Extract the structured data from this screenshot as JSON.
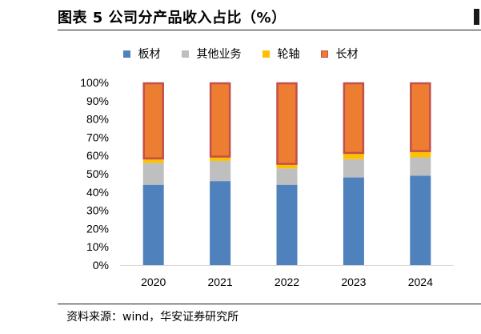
{
  "header": {
    "title": "图表 5 公司分产品收入占比（%）"
  },
  "footer": {
    "source": "资料来源：wind，华安证券研究所"
  },
  "colors": {
    "board": "#4f81bd",
    "other": "#bfbfbf",
    "wheel": "#ffc000",
    "long": "#ed7d31",
    "long_border": "#c0504d"
  },
  "chart_data": {
    "type": "bar",
    "stacked": true,
    "categories": [
      "2020",
      "2021",
      "2022",
      "2023",
      "2024"
    ],
    "series": [
      {
        "name": "板材",
        "values": [
          44,
          46,
          44,
          48,
          49
        ]
      },
      {
        "name": "其他业务",
        "values": [
          12,
          11,
          9,
          10,
          10
        ]
      },
      {
        "name": "轮轴",
        "values": [
          2,
          2,
          2,
          3,
          3
        ]
      },
      {
        "name": "长材",
        "values": [
          42,
          41,
          45,
          39,
          38
        ]
      }
    ],
    "y_ticks": [
      "0%",
      "10%",
      "20%",
      "30%",
      "40%",
      "50%",
      "60%",
      "70%",
      "80%",
      "90%",
      "100%"
    ],
    "ylim": [
      0,
      100
    ],
    "grid": false,
    "legend_position": "top"
  }
}
